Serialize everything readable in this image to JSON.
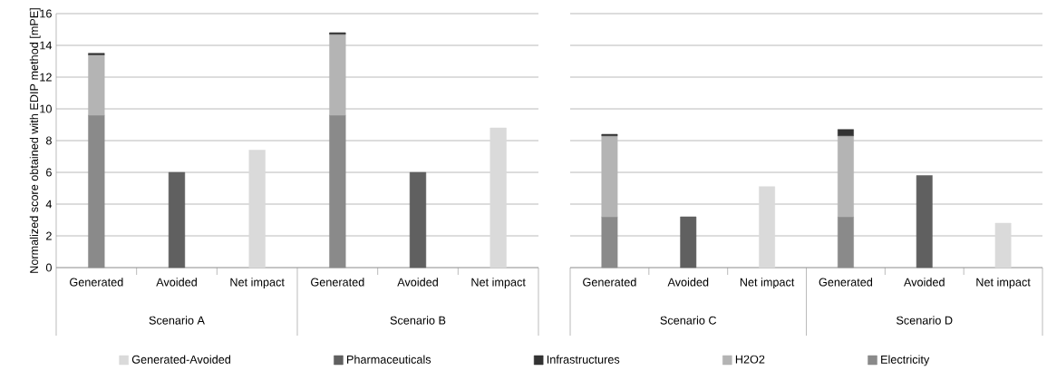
{
  "chart_data": [
    {
      "type": "bar",
      "stacked": true,
      "ylabel": "Normalized score obtained with EDIP method [mPE]",
      "categories": [
        "Generated",
        "Avoided",
        "Net impact",
        "Generated",
        "Avoided",
        "Net impact"
      ],
      "annotations": [
        "Scenario A",
        "Scenario B"
      ],
      "ylim": [
        0,
        16
      ],
      "yticks": [
        0,
        2,
        4,
        6,
        8,
        10,
        12,
        14,
        16
      ],
      "grid": "y",
      "legend": "bottom",
      "series": [
        {
          "name": "Electricity",
          "color": "#8a8a8a",
          "values": [
            9.6,
            null,
            null,
            9.6,
            null,
            null
          ]
        },
        {
          "name": "H2O2",
          "color": "#b4b4b4",
          "values": [
            3.8,
            null,
            null,
            5.1,
            null,
            null
          ]
        },
        {
          "name": "Infrastructures",
          "color": "#333333",
          "values": [
            0.1,
            null,
            null,
            0.1,
            null,
            null
          ]
        },
        {
          "name": "Pharmaceuticals",
          "color": "#606060",
          "values": [
            null,
            6.0,
            null,
            null,
            6.0,
            null
          ]
        },
        {
          "name": "Generated-Avoided",
          "color": "#dadada",
          "values": [
            null,
            null,
            7.4,
            null,
            null,
            8.8
          ]
        }
      ]
    },
    {
      "type": "bar",
      "stacked": true,
      "tick_labels": "x",
      "categories": [
        "Generated",
        "Avoided",
        "Net impact",
        "Generated",
        "Avoided",
        "Net impact"
      ],
      "annotations": [
        "Scenario C",
        "Scenario D"
      ],
      "ylim": [
        0,
        16
      ],
      "yticks": [
        0,
        2,
        4,
        6,
        8,
        10,
        12,
        14,
        16
      ],
      "grid": "y",
      "series": [
        {
          "color": "#8a8a8a",
          "values": [
            3.2,
            null,
            null,
            3.2,
            null,
            null
          ]
        },
        {
          "color": "#b4b4b4",
          "values": [
            5.1,
            null,
            null,
            5.1,
            null,
            null
          ]
        },
        {
          "color": "#333333",
          "values": [
            0.1,
            null,
            null,
            0.4,
            null,
            null
          ]
        },
        {
          "color": "#606060",
          "values": [
            null,
            3.2,
            null,
            null,
            5.8,
            null
          ]
        },
        {
          "color": "#dadada",
          "values": [
            null,
            null,
            5.1,
            null,
            null,
            2.8
          ]
        }
      ]
    }
  ]
}
